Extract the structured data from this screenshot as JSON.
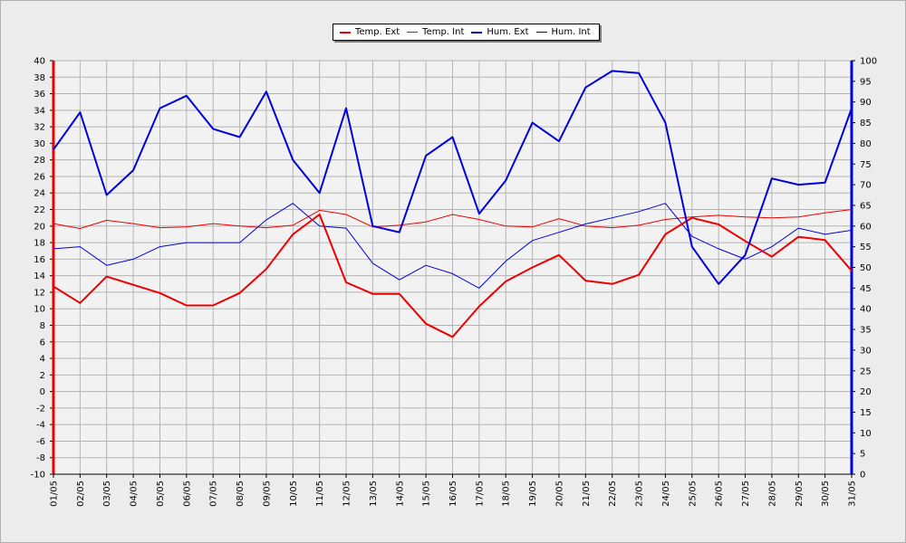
{
  "chart_data": {
    "type": "line",
    "title": "",
    "x": [
      "01/05",
      "02/05",
      "03/05",
      "04/05",
      "05/05",
      "06/05",
      "07/05",
      "08/05",
      "09/05",
      "10/05",
      "11/05",
      "12/05",
      "13/05",
      "14/05",
      "15/05",
      "16/05",
      "17/05",
      "18/05",
      "19/05",
      "20/05",
      "21/05",
      "22/05",
      "23/05",
      "24/05",
      "25/05",
      "26/05",
      "27/05",
      "28/05",
      "29/05",
      "30/05",
      "31/05"
    ],
    "y_left": {
      "min": -10,
      "max": 40,
      "step": 2
    },
    "y_right": {
      "min": 0,
      "max": 100,
      "step": 5
    },
    "grid": true,
    "legend_position": "top-center",
    "series": [
      {
        "name": "Temp. Ext",
        "axis": "left",
        "color": "#ee0000",
        "width": 2,
        "values": [
          12.7,
          10.7,
          13.9,
          12.9,
          11.9,
          10.4,
          10.4,
          11.9,
          14.8,
          19.0,
          21.4,
          13.2,
          11.8,
          11.8,
          8.2,
          6.6,
          10.3,
          13.3,
          15.0,
          16.5,
          13.4,
          13.0,
          14.1,
          19.0,
          21.0,
          20.2,
          18.2,
          16.3,
          18.7,
          18.3,
          14.6
        ]
      },
      {
        "name": "Temp. Int",
        "axis": "left",
        "color": "#ee0000",
        "width": 1,
        "values": [
          20.3,
          19.7,
          20.7,
          20.3,
          19.8,
          19.9,
          20.3,
          20.0,
          19.8,
          20.1,
          21.9,
          21.4,
          19.9,
          20.1,
          20.5,
          21.4,
          20.8,
          20.0,
          19.9,
          20.9,
          20.0,
          19.8,
          20.1,
          20.8,
          21.1,
          21.3,
          21.1,
          21.0,
          21.1,
          21.6,
          22.0
        ]
      },
      {
        "name": "Hum. Ext",
        "axis": "right",
        "color": "#0000dd",
        "width": 2,
        "values": [
          78.5,
          87.5,
          67.5,
          73.5,
          88.5,
          91.5,
          83.5,
          81.5,
          92.5,
          76.0,
          68.0,
          88.5,
          60.0,
          58.5,
          77.0,
          81.5,
          63.0,
          71.0,
          85.0,
          80.5,
          93.5,
          97.5,
          97.0,
          85.0,
          55.0,
          46.0,
          53.0,
          71.5,
          70.0,
          70.5,
          88.5
        ]
      },
      {
        "name": "Hum. Int",
        "axis": "right",
        "color": "#0000dd",
        "width": 1,
        "values": [
          54.5,
          55.0,
          50.5,
          52.0,
          55.0,
          56.0,
          56.0,
          56.0,
          61.5,
          65.5,
          60.0,
          59.5,
          51.0,
          47.0,
          50.5,
          48.5,
          45.0,
          51.5,
          56.5,
          58.5,
          60.5,
          62.0,
          63.5,
          65.5,
          57.5,
          54.5,
          52.0,
          55.0,
          59.5,
          58.0,
          59.0
        ]
      }
    ]
  }
}
